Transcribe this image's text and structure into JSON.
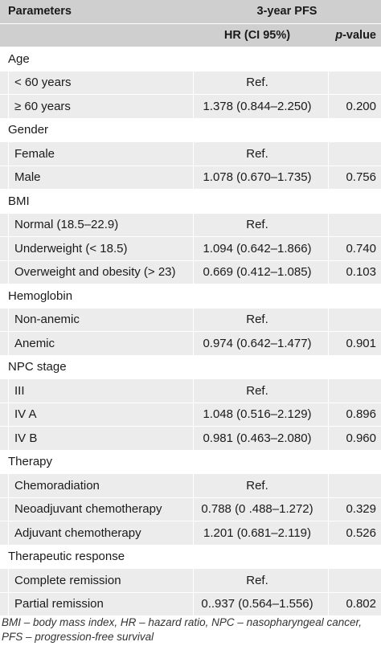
{
  "header": {
    "parameters": "Parameters",
    "group": "3-year PFS",
    "hr": "HR (CI 95%)",
    "p_italic": "p",
    "p_rest": "-value"
  },
  "groups": [
    {
      "name": "Age",
      "rows": [
        {
          "label": "< 60 years",
          "hr": "Ref.",
          "p": ""
        },
        {
          "label": "≥ 60 years",
          "hr": "1.378 (0.844–2.250)",
          "p": "0.200"
        }
      ]
    },
    {
      "name": "Gender",
      "rows": [
        {
          "label": "Female",
          "hr": "Ref.",
          "p": ""
        },
        {
          "label": "Male",
          "hr": "1.078 (0.670–1.735)",
          "p": "0.756"
        }
      ]
    },
    {
      "name": "BMI",
      "rows": [
        {
          "label": "Normal (18.5–22.9)",
          "hr": "Ref.",
          "p": ""
        },
        {
          "label": "Underweight (< 18.5)",
          "hr": "1.094 (0.642–1.866)",
          "p": "0.740"
        },
        {
          "label": "Overweight and obesity (> 23)",
          "hr": "0.669 (0.412–1.085)",
          "p": "0.103"
        }
      ]
    },
    {
      "name": "Hemoglobin",
      "rows": [
        {
          "label": "Non-anemic",
          "hr": "Ref.",
          "p": ""
        },
        {
          "label": "Anemic",
          "hr": "0.974 (0.642–1.477)",
          "p": "0.901"
        }
      ]
    },
    {
      "name": "NPC stage",
      "rows": [
        {
          "label": "III",
          "hr": "Ref.",
          "p": ""
        },
        {
          "label": "IV A",
          "hr": "1.048 (0.516–2.129)",
          "p": "0.896"
        },
        {
          "label": "IV B",
          "hr": "0.981 (0.463–2.080)",
          "p": "0.960"
        }
      ]
    },
    {
      "name": "Therapy",
      "rows": [
        {
          "label": "Chemoradiation",
          "hr": "Ref.",
          "p": ""
        },
        {
          "label": "Neoadjuvant chemotherapy",
          "hr": "0.788 (0 .488–1.272)",
          "p": "0.329"
        },
        {
          "label": "Adjuvant chemotherapy",
          "hr": "1.201 (0.681–2.119)",
          "p": "0.526"
        }
      ]
    },
    {
      "name": "Therapeutic response",
      "rows": [
        {
          "label": "Complete remission",
          "hr": "Ref.",
          "p": ""
        },
        {
          "label": "Partial remission",
          "hr": "0..937 (0.564–1.556)",
          "p": "0.802"
        }
      ]
    }
  ],
  "footnote": {
    "line1": "BMI – body mass index, HR – hazard ratio, NPC – nasopharyngeal cancer,",
    "line2": "PFS – progression-free survival"
  }
}
